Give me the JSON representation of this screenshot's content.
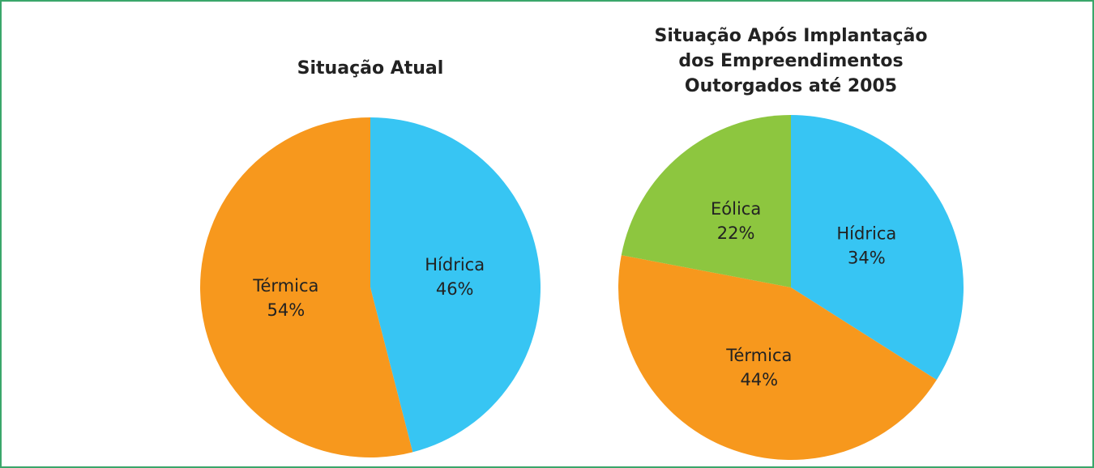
{
  "chart_data": [
    {
      "type": "pie",
      "title": [
        "Situação Atual"
      ],
      "categories": [
        "Hídrica",
        "Térmica"
      ],
      "values": [
        46,
        54
      ],
      "value_labels": [
        "46%",
        "54%"
      ],
      "colors": [
        "#37c5f3",
        "#f7981d"
      ]
    },
    {
      "type": "pie",
      "title": [
        "Situação Após Implantação",
        "dos Empreendimentos",
        "Outorgados até 2005"
      ],
      "categories": [
        "Hídrica",
        "Térmica",
        "Eólica"
      ],
      "values": [
        34,
        44,
        22
      ],
      "value_labels": [
        "34%",
        "44%",
        "22%"
      ],
      "colors": [
        "#37c5f3",
        "#f7981d",
        "#8dc63f"
      ]
    }
  ]
}
